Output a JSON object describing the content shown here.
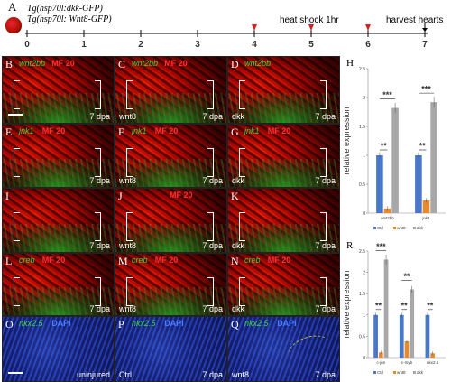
{
  "figure": {
    "panel_A": {
      "letter": "A",
      "line1": "Tg(hsp70l:dkk-GFP)",
      "line2": "Tg(hsp70l: Wnt8-GFP)",
      "ticks": [
        "0",
        "1",
        "2",
        "3",
        "4",
        "5",
        "6",
        "7"
      ],
      "heat_label": "heat shock 1hr",
      "harvest_label": "harvest hearts",
      "arrow_color": "#d42020"
    },
    "panels": [
      {
        "letter": "B",
        "gene": "wnt2bb",
        "stain": "MF 20",
        "cond": "",
        "dpa": "7 dpa",
        "type": "red",
        "scale": true,
        "brackets": true
      },
      {
        "letter": "C",
        "gene": "wnt2bb",
        "stain": "MF 20",
        "cond": "wnt8",
        "dpa": "7 dpa",
        "type": "red",
        "scale": false,
        "brackets": true
      },
      {
        "letter": "D",
        "gene": "wnt2bb",
        "stain": "",
        "cond": "dkk",
        "dpa": "7 dpa",
        "type": "red",
        "scale": false,
        "brackets": true
      },
      {
        "letter": "E",
        "gene": "jnk1",
        "stain": "MF 20",
        "cond": "",
        "dpa": "7 dpa",
        "type": "red",
        "scale": false,
        "brackets": true
      },
      {
        "letter": "F",
        "gene": "jnk1",
        "stain": "MF 20",
        "cond": "wnt8",
        "dpa": "7 dpa",
        "type": "red",
        "scale": false,
        "brackets": true
      },
      {
        "letter": "G",
        "gene": "jnk1",
        "stain": "MF 20",
        "cond": "dkk",
        "dpa": "7 dpa",
        "type": "red",
        "scale": false,
        "brackets": true
      },
      {
        "letter": "I",
        "gene": "",
        "stain": "",
        "cond": "",
        "dpa": "7 dpa",
        "type": "red",
        "scale": false,
        "brackets": true
      },
      {
        "letter": "J",
        "gene": "",
        "stain": "MF 20",
        "cond": "wnt8",
        "dpa": "7 dpa",
        "type": "red",
        "scale": false,
        "brackets": true
      },
      {
        "letter": "K",
        "gene": "",
        "stain": "",
        "cond": "dkk",
        "dpa": "7 dpa",
        "type": "red",
        "scale": false,
        "brackets": true
      },
      {
        "letter": "L",
        "gene": "creb",
        "stain": "MF 20",
        "cond": "",
        "dpa": "7 dpa",
        "type": "red",
        "scale": false,
        "brackets": true
      },
      {
        "letter": "M",
        "gene": "creb",
        "stain": "MF 20",
        "cond": "wnt8",
        "dpa": "7 dpa",
        "type": "red",
        "scale": false,
        "brackets": true
      },
      {
        "letter": "N",
        "gene": "creb",
        "stain": "MF 20",
        "cond": "dkk",
        "dpa": "7 dpa",
        "type": "red",
        "scale": false,
        "brackets": true
      },
      {
        "letter": "O",
        "gene": "nkx2.5",
        "stain": "DAPI",
        "cond": "",
        "dpa": "uninjured",
        "type": "blue",
        "scale": true,
        "brackets": false
      },
      {
        "letter": "P",
        "gene": "nkx2.5",
        "stain": "DAPI",
        "cond": "Ctrl",
        "dpa": "7 dpa",
        "type": "blue",
        "scale": false,
        "brackets": false
      },
      {
        "letter": "Q",
        "gene": "nkx2.5",
        "stain": "DAPI",
        "cond": "wnt8",
        "dpa": "7 dpa",
        "type": "blue",
        "scale": false,
        "brackets": false
      }
    ]
  },
  "chart_data": [
    {
      "type": "bar",
      "panel_letter": "H",
      "ylabel": "relative expression",
      "ylim": [
        0,
        2.5
      ],
      "yticks": [
        "0",
        "0.5",
        "1",
        "1.5",
        "2",
        "2.5"
      ],
      "categories": [
        "wnt2bb",
        "jnk1"
      ],
      "series": [
        {
          "name": "Ctrl",
          "color": "#4a78c8",
          "values": [
            1.0,
            1.0
          ]
        },
        {
          "name": "wnt8",
          "color": "#e88a2a",
          "values": [
            0.08,
            0.22
          ]
        },
        {
          "name": "dkk",
          "color": "#a8a8a8",
          "values": [
            1.82,
            1.92
          ]
        }
      ],
      "significance": [
        {
          "label": "**",
          "category": 0,
          "from": 0,
          "to": 1
        },
        {
          "label": "***",
          "category": 0,
          "from": 0,
          "to": 2
        },
        {
          "label": "**",
          "category": 1,
          "from": 0,
          "to": 1
        },
        {
          "label": "***",
          "category": 1,
          "from": 0,
          "to": 2
        }
      ],
      "legend_placement": "bottom"
    },
    {
      "type": "bar",
      "panel_letter": "R",
      "ylabel": "relative expression",
      "ylim": [
        0,
        2.5
      ],
      "yticks": [
        "0",
        "0.5",
        "1",
        "1.5",
        "2",
        "2.5"
      ],
      "categories": [
        "c-jun",
        "c-myb",
        "nkx2.5"
      ],
      "series": [
        {
          "name": "Ctrl",
          "color": "#4a78c8",
          "values": [
            1.0,
            1.0,
            1.0
          ]
        },
        {
          "name": "wnt8",
          "color": "#e88a2a",
          "values": [
            0.12,
            0.38,
            0.1
          ]
        },
        {
          "name": "dkk",
          "color": "#a8a8a8",
          "values": [
            2.3,
            1.6,
            0
          ]
        }
      ],
      "significance": [
        {
          "label": "**",
          "category": 0,
          "from": 0,
          "to": 1
        },
        {
          "label": "***",
          "category": 0,
          "from": 0,
          "to": 2
        },
        {
          "label": "**",
          "category": 1,
          "from": 0,
          "to": 1
        },
        {
          "label": "**",
          "category": 1,
          "from": 0,
          "to": 2
        },
        {
          "label": "**",
          "category": 2,
          "from": 0,
          "to": 1
        }
      ],
      "legend_placement": "bottom"
    }
  ]
}
